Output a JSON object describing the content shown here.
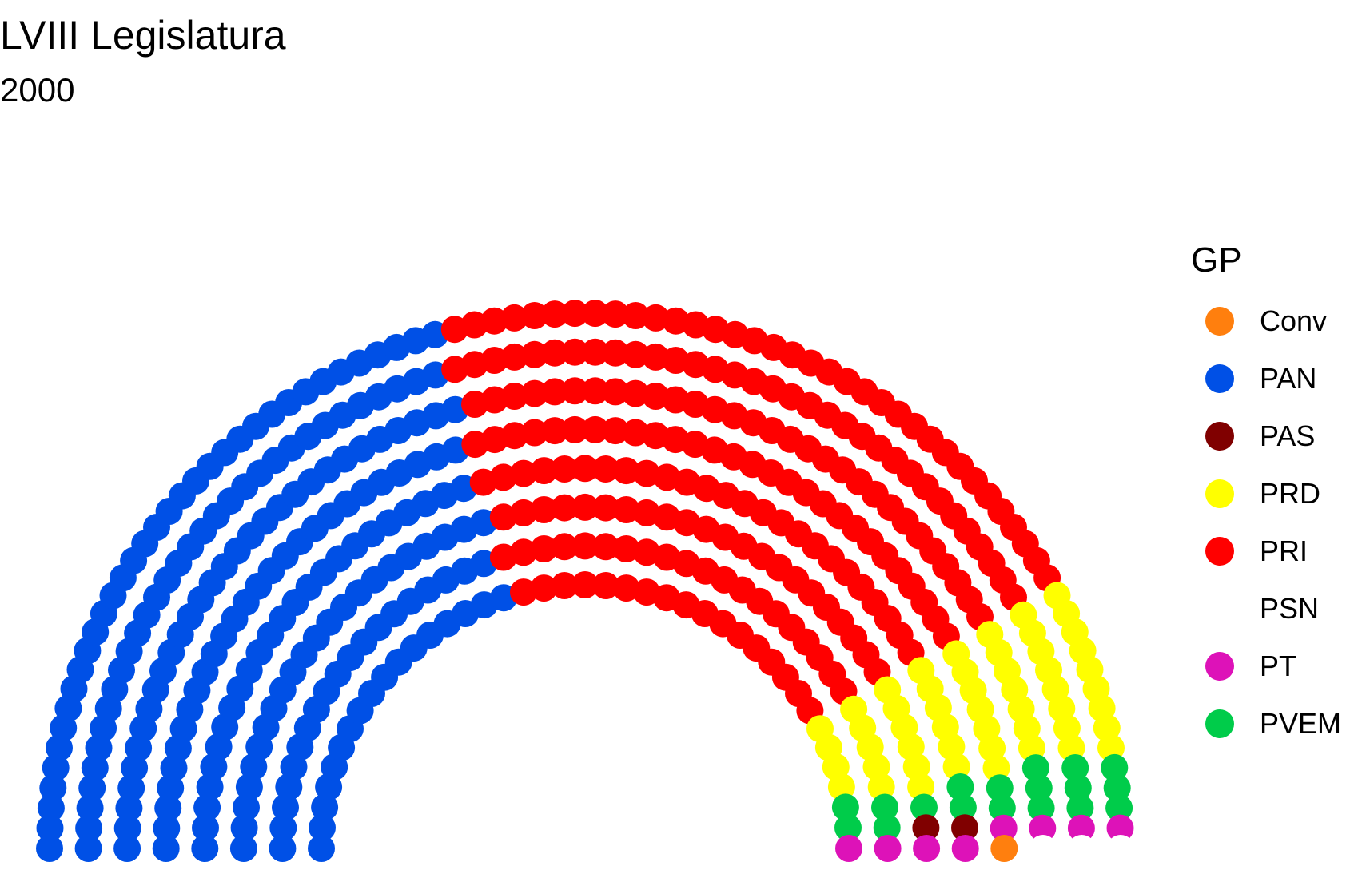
{
  "chart_data": {
    "type": "parliament",
    "title": "LVIII Legislatura",
    "subtitle": "2000",
    "legend_title": "GP",
    "legend_position": "right",
    "total_seats": 500,
    "parties": [
      {
        "name": "Conv",
        "color": "#FF7F0E",
        "seats": 1
      },
      {
        "name": "PAN",
        "color": "#0050E6",
        "seats": 206
      },
      {
        "name": "PAS",
        "color": "#800000",
        "seats": 2
      },
      {
        "name": "PRD",
        "color": "#FFFF00",
        "seats": 52
      },
      {
        "name": "PRI",
        "color": "#FF0000",
        "seats": 210
      },
      {
        "name": "PSN",
        "color": "#FFFFFF",
        "seats": 3
      },
      {
        "name": "PT",
        "color": "#DD12B8",
        "seats": 8
      },
      {
        "name": "PVEM",
        "color": "#00CC4A",
        "seats": 18
      }
    ],
    "seat_order": [
      "PAN",
      "PRI",
      "PRD",
      "PVEM",
      "PAS",
      "PT",
      "Conv",
      "PSN"
    ]
  }
}
